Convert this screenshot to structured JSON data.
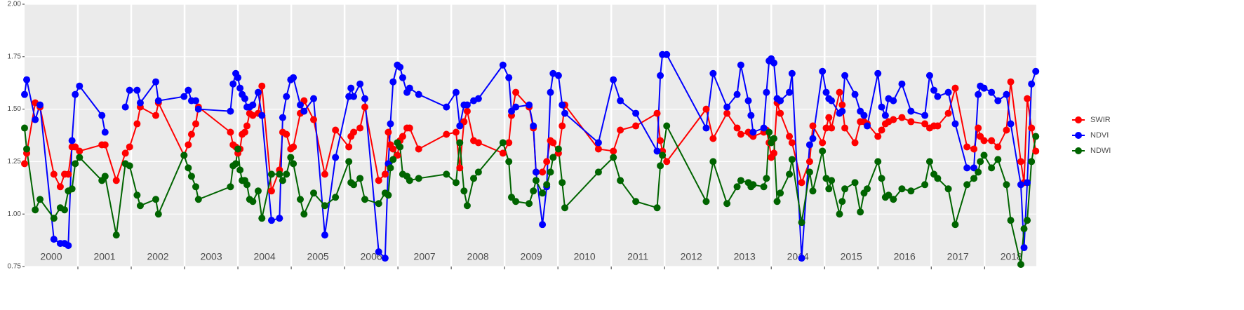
{
  "chart_data": {
    "type": "line",
    "x": [
      2000.0,
      2000.04,
      2000.2,
      2000.29,
      2000.55,
      2000.67,
      2000.75,
      2000.82,
      2000.89,
      2000.95,
      2001.03,
      2001.45,
      2001.51,
      2001.72,
      2001.89,
      2001.97,
      2002.11,
      2002.17,
      2002.46,
      2002.51,
      2002.99,
      2003.07,
      2003.13,
      2003.21,
      2003.26,
      2003.86,
      2003.91,
      2003.96,
      2004.0,
      2004.04,
      2004.08,
      2004.13,
      2004.17,
      2004.22,
      2004.28,
      2004.38,
      2004.45,
      2004.63,
      2004.78,
      2004.84,
      2004.91,
      2004.99,
      2005.04,
      2005.17,
      2005.24,
      2005.42,
      2005.63,
      2005.83,
      2006.08,
      2006.12,
      2006.17,
      2006.29,
      2006.38,
      2006.64,
      2006.76,
      2006.82,
      2006.86,
      2006.91,
      2006.99,
      2007.04,
      2007.09,
      2007.17,
      2007.22,
      2007.39,
      2007.91,
      2008.09,
      2008.16,
      2008.24,
      2008.3,
      2008.42,
      2008.51,
      2008.97,
      2009.08,
      2009.13,
      2009.21,
      2009.46,
      2009.54,
      2009.59,
      2009.71,
      2009.79,
      2009.86,
      2009.91,
      2010.01,
      2010.08,
      2010.13,
      2010.76,
      2011.04,
      2011.17,
      2011.46,
      2011.86,
      2011.92,
      2011.96,
      2012.04,
      2012.78,
      2012.91,
      2013.17,
      2013.36,
      2013.43,
      2013.57,
      2013.62,
      2013.66,
      2013.86,
      2013.91,
      2013.96,
      2014.0,
      2014.05,
      2014.11,
      2014.17,
      2014.34,
      2014.39,
      2014.57,
      2014.72,
      2014.78,
      2014.96,
      2015.03,
      2015.08,
      2015.13,
      2015.28,
      2015.33,
      2015.38,
      2015.57,
      2015.67,
      2015.74,
      2015.8,
      2016.0,
      2016.07,
      2016.14,
      2016.2,
      2016.29,
      2016.45,
      2016.62,
      2016.88,
      2016.97,
      2017.05,
      2017.12,
      2017.32,
      2017.45,
      2017.67,
      2017.8,
      2017.88,
      2017.92,
      2017.99,
      2018.13,
      2018.25,
      2018.41,
      2018.49,
      2018.68,
      2018.74,
      2018.8,
      2018.88,
      2018.96
    ],
    "series": [
      {
        "name": "SWIR",
        "color": "#ff0000",
        "values": [
          1.24,
          1.29,
          1.53,
          1.51,
          1.19,
          1.13,
          1.19,
          1.19,
          1.32,
          1.32,
          1.3,
          1.33,
          1.33,
          1.16,
          1.29,
          1.32,
          1.43,
          1.51,
          1.47,
          1.53,
          1.28,
          1.33,
          1.38,
          1.43,
          1.51,
          1.39,
          1.33,
          1.32,
          1.29,
          1.31,
          1.38,
          1.39,
          1.42,
          1.48,
          1.47,
          1.48,
          1.61,
          1.11,
          1.21,
          1.39,
          1.38,
          1.31,
          1.32,
          1.48,
          1.54,
          1.45,
          1.19,
          1.4,
          1.32,
          1.37,
          1.39,
          1.41,
          1.51,
          1.16,
          1.19,
          1.39,
          1.33,
          1.31,
          1.28,
          1.35,
          1.37,
          1.41,
          1.41,
          1.31,
          1.38,
          1.39,
          1.22,
          1.44,
          1.49,
          1.35,
          1.34,
          1.29,
          1.34,
          1.47,
          1.58,
          1.51,
          1.41,
          1.2,
          1.2,
          1.25,
          1.35,
          1.34,
          1.29,
          1.42,
          1.52,
          1.31,
          1.3,
          1.4,
          1.42,
          1.48,
          1.35,
          1.3,
          1.25,
          1.5,
          1.36,
          1.48,
          1.41,
          1.38,
          1.39,
          1.38,
          1.37,
          1.39,
          1.4,
          1.34,
          1.27,
          1.29,
          1.53,
          1.48,
          1.37,
          1.34,
          1.15,
          1.25,
          1.42,
          1.34,
          1.41,
          1.46,
          1.41,
          1.58,
          1.52,
          1.41,
          1.34,
          1.44,
          1.44,
          1.43,
          1.37,
          1.4,
          1.43,
          1.44,
          1.45,
          1.46,
          1.44,
          1.43,
          1.41,
          1.42,
          1.42,
          1.48,
          1.6,
          1.32,
          1.31,
          1.41,
          1.37,
          1.35,
          1.35,
          1.32,
          1.4,
          1.63,
          1.25,
          1.15,
          1.55,
          1.41,
          1.3
        ]
      },
      {
        "name": "NDVI",
        "color": "#0000ff",
        "values": [
          1.57,
          1.64,
          1.45,
          1.52,
          0.88,
          0.86,
          0.86,
          0.85,
          1.35,
          1.57,
          1.61,
          1.47,
          1.39,
          null,
          1.51,
          1.59,
          1.59,
          1.53,
          1.63,
          1.54,
          1.56,
          1.59,
          1.54,
          1.54,
          1.5,
          1.49,
          1.62,
          1.67,
          1.65,
          1.6,
          1.57,
          1.55,
          1.51,
          1.51,
          1.52,
          1.58,
          1.47,
          0.97,
          0.98,
          1.46,
          1.56,
          1.64,
          1.65,
          1.52,
          1.49,
          1.55,
          0.9,
          1.27,
          1.56,
          1.6,
          1.56,
          1.62,
          1.55,
          0.82,
          0.79,
          1.24,
          1.43,
          1.63,
          1.71,
          1.7,
          1.65,
          1.58,
          1.6,
          1.57,
          1.51,
          1.58,
          1.42,
          1.52,
          1.52,
          1.54,
          1.55,
          1.71,
          1.65,
          1.49,
          1.51,
          1.52,
          1.42,
          1.2,
          0.95,
          1.13,
          1.58,
          1.67,
          1.66,
          1.52,
          1.48,
          1.34,
          1.64,
          1.54,
          1.48,
          1.3,
          1.66,
          1.76,
          1.76,
          1.41,
          1.67,
          1.51,
          1.57,
          1.71,
          1.54,
          1.47,
          1.39,
          1.41,
          1.58,
          1.73,
          1.74,
          1.72,
          1.55,
          1.54,
          1.58,
          1.67,
          0.79,
          1.33,
          1.36,
          1.68,
          1.58,
          1.55,
          1.54,
          1.48,
          1.49,
          1.66,
          1.57,
          1.49,
          1.47,
          1.42,
          1.67,
          1.51,
          1.47,
          1.55,
          1.54,
          1.62,
          1.49,
          1.47,
          1.66,
          1.59,
          1.56,
          1.58,
          1.43,
          1.22,
          1.22,
          1.57,
          1.61,
          1.6,
          1.58,
          1.54,
          1.57,
          1.43,
          1.14,
          0.84,
          1.15,
          1.62,
          1.68
        ]
      },
      {
        "name": "NDWI",
        "color": "#006400",
        "values": [
          1.41,
          1.31,
          1.02,
          1.07,
          0.98,
          1.03,
          1.02,
          1.11,
          1.12,
          1.24,
          1.27,
          1.16,
          1.18,
          0.9,
          1.24,
          1.23,
          1.09,
          1.04,
          1.07,
          1.0,
          1.28,
          1.22,
          1.18,
          1.13,
          1.07,
          1.13,
          1.23,
          1.24,
          1.31,
          1.21,
          1.16,
          1.16,
          1.14,
          1.07,
          1.06,
          1.11,
          0.98,
          1.19,
          1.19,
          1.16,
          1.19,
          1.27,
          1.24,
          1.07,
          1.0,
          1.1,
          1.04,
          1.08,
          1.25,
          1.15,
          1.14,
          1.17,
          1.07,
          1.05,
          1.1,
          1.09,
          1.22,
          1.26,
          1.34,
          1.32,
          1.19,
          1.18,
          1.16,
          1.17,
          1.19,
          1.15,
          1.34,
          1.11,
          1.04,
          1.17,
          1.2,
          1.34,
          1.25,
          1.08,
          1.06,
          1.05,
          1.11,
          1.16,
          1.1,
          1.14,
          1.2,
          1.27,
          1.31,
          1.15,
          1.03,
          1.2,
          1.27,
          1.16,
          1.06,
          1.03,
          1.23,
          1.28,
          1.42,
          1.06,
          1.25,
          1.05,
          1.13,
          1.16,
          1.15,
          1.13,
          1.14,
          1.13,
          1.17,
          1.39,
          1.34,
          1.36,
          1.06,
          1.1,
          1.19,
          1.26,
          0.96,
          1.2,
          1.11,
          1.3,
          1.17,
          1.12,
          1.16,
          1.0,
          1.06,
          1.12,
          1.15,
          1.01,
          1.1,
          1.12,
          1.25,
          1.17,
          1.08,
          1.09,
          1.07,
          1.12,
          1.11,
          1.14,
          1.25,
          1.19,
          1.17,
          1.12,
          0.95,
          1.14,
          1.17,
          1.2,
          1.25,
          1.28,
          1.22,
          1.26,
          1.14,
          0.97,
          0.76,
          0.93,
          0.97,
          1.25,
          1.37
        ]
      }
    ],
    "xlim": [
      2000,
      2018.97
    ],
    "xticks": [
      {
        "value": 2000.5,
        "label": "2000"
      },
      {
        "value": 2001.5,
        "label": "2001"
      },
      {
        "value": 2002.5,
        "label": "2002"
      },
      {
        "value": 2003.5,
        "label": "2003"
      },
      {
        "value": 2004.5,
        "label": "2004"
      },
      {
        "value": 2005.5,
        "label": "2005"
      },
      {
        "value": 2006.5,
        "label": "2006"
      },
      {
        "value": 2007.5,
        "label": "2007"
      },
      {
        "value": 2008.5,
        "label": "2008"
      },
      {
        "value": 2009.5,
        "label": "2009"
      },
      {
        "value": 2010.5,
        "label": "2010"
      },
      {
        "value": 2011.5,
        "label": "2011"
      },
      {
        "value": 2012.5,
        "label": "2012"
      },
      {
        "value": 2013.5,
        "label": "2013"
      },
      {
        "value": 2014.5,
        "label": "2014"
      },
      {
        "value": 2015.5,
        "label": "2015"
      },
      {
        "value": 2016.5,
        "label": "2016"
      },
      {
        "value": 2017.5,
        "label": "2017"
      },
      {
        "value": 2018.5,
        "label": "2018"
      }
    ],
    "xgrid": [
      2001,
      2002,
      2003,
      2004,
      2005,
      2006,
      2007,
      2008,
      2009,
      2010,
      2011,
      2012,
      2013,
      2014,
      2015,
      2016,
      2017,
      2018
    ],
    "ylim": [
      0.75,
      2.0
    ],
    "yticks": [
      0.75,
      {
        "value": 1.0,
        "label": "1.00"
      },
      1.25,
      {
        "value": 1.5,
        "label": "1.50"
      },
      1.75,
      {
        "value": 2.0,
        "label": "2.00"
      }
    ],
    "grid": true,
    "legend": "right"
  }
}
